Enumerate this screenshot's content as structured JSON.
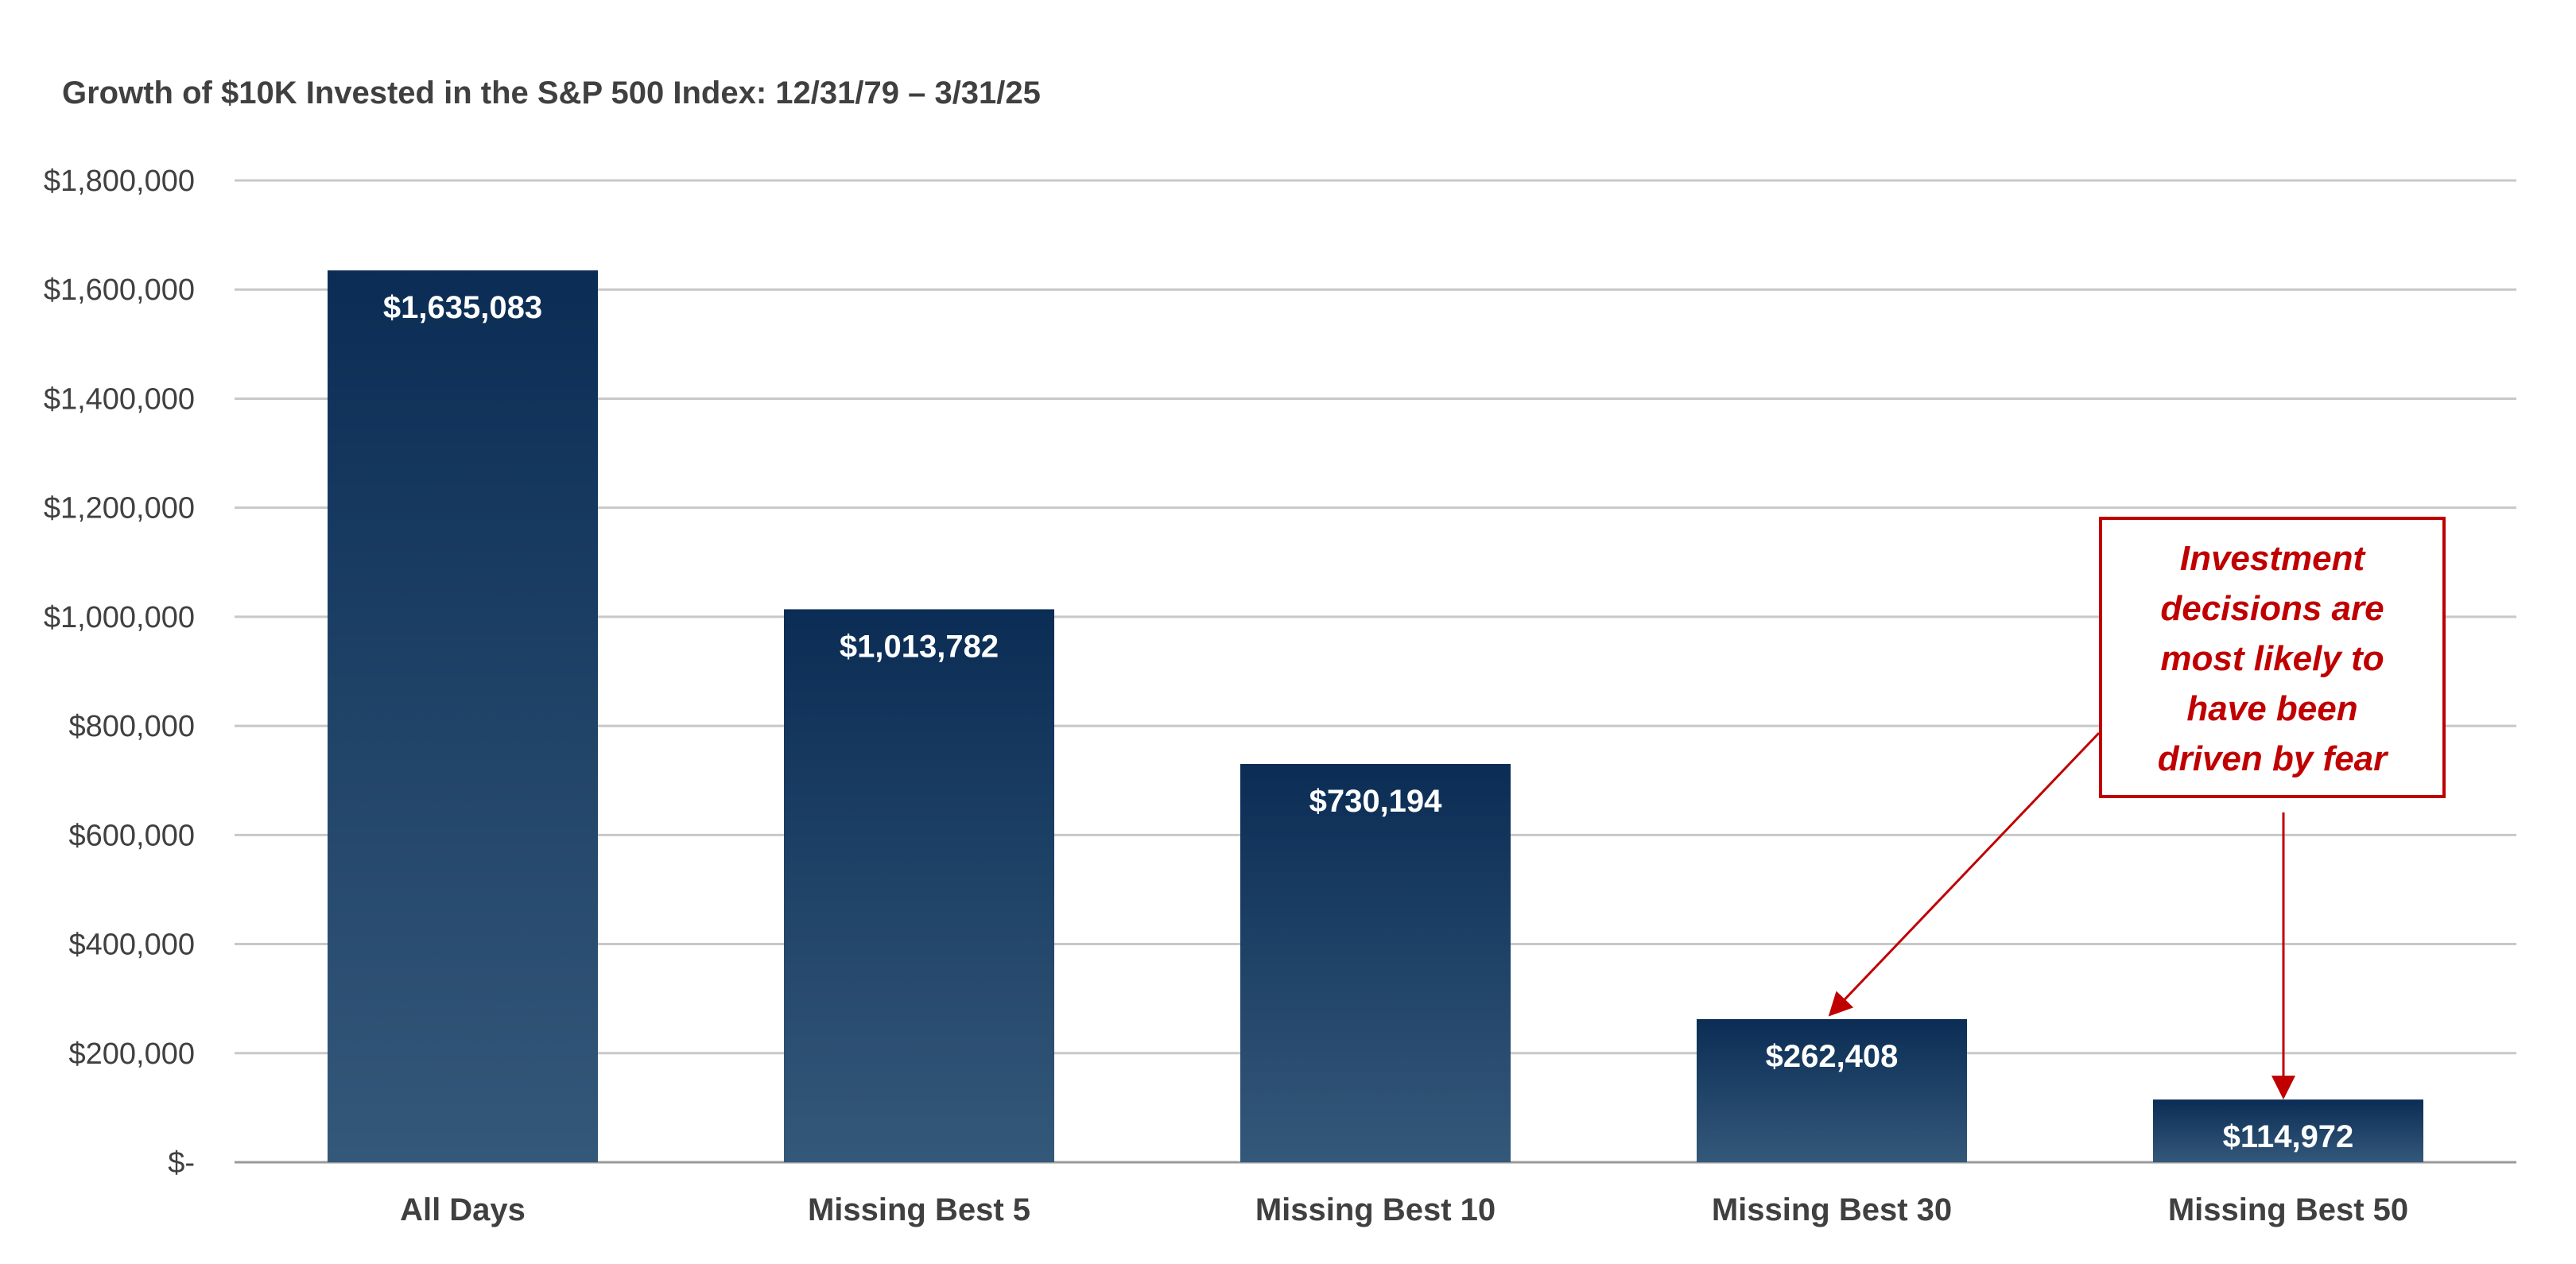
{
  "chart_data": {
    "type": "bar",
    "title": "Growth of $10K Invested in the S&P 500 Index: 12/31/79 – 3/31/25",
    "categories": [
      "All Days",
      "Missing Best 5",
      "Missing Best 10",
      "Missing Best 30",
      "Missing Best 50"
    ],
    "values": [
      1635083,
      1013782,
      730194,
      262408,
      114972
    ],
    "value_labels": [
      "$1,635,083",
      "$1,013,782",
      "$730,194",
      "$262,408",
      "$114,972"
    ],
    "ylim": [
      0,
      1800000
    ],
    "yticks": [
      0,
      200000,
      400000,
      600000,
      800000,
      1000000,
      1200000,
      1400000,
      1600000,
      1800000
    ],
    "ytick_labels": [
      "$-",
      "$200,000",
      "$400,000",
      "$600,000",
      "$800,000",
      "$1,000,000",
      "$1,200,000",
      "$1,400,000",
      "$1,600,000",
      "$1,800,000"
    ],
    "xlabel": "",
    "ylabel": "",
    "grid": true,
    "colors": {
      "bar_top": "#0b2d55",
      "bar_bottom": "#34587a",
      "grid": "#c8c8c8",
      "text": "#404040",
      "callout": "#c00000"
    },
    "annotations": [
      {
        "text_lines": [
          "Investment",
          "decisions are",
          "most likely to",
          "have been",
          "driven by fear"
        ],
        "arrow_targets": [
          "Missing Best 30",
          "Missing Best 50"
        ]
      }
    ]
  }
}
